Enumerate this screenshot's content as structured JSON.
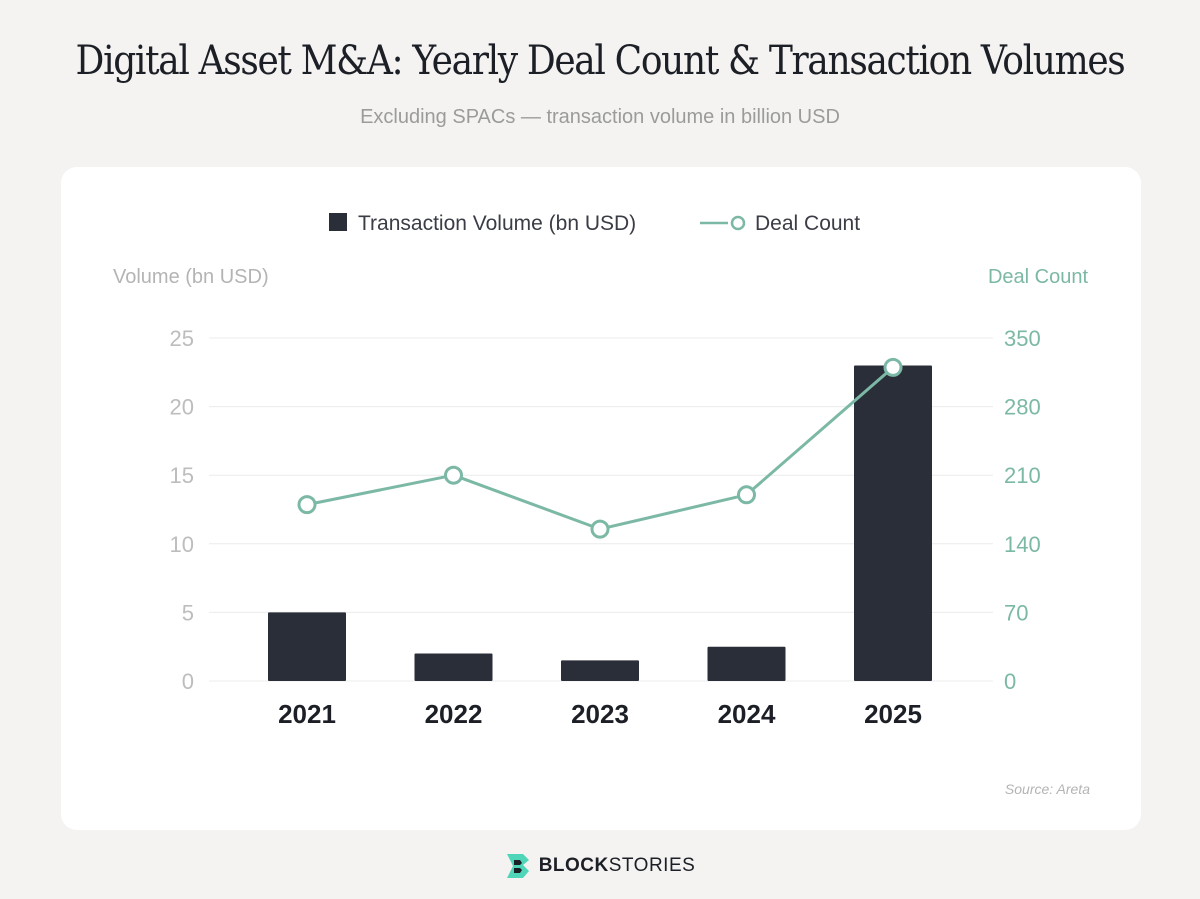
{
  "page": {
    "title": "Digital Asset M&A: Yearly Deal Count & Transaction Volumes",
    "subtitle": "Excluding SPACs — transaction volume in billion USD",
    "source": "Source: Areta",
    "brand": {
      "bold": "BLOCK",
      "light": "STORIES",
      "icon": "blockstories-logo-icon"
    }
  },
  "colors": {
    "bar": "#2a2e38",
    "line": "#7cb8a6",
    "left_axis_text": "#bdbdbd",
    "right_axis_text": "#7cb8a6",
    "grid": "#ececec",
    "logo_accent": "#4fd6b8"
  },
  "chart_data": {
    "type": "bar",
    "categories": [
      "2021",
      "2022",
      "2023",
      "2024",
      "2025"
    ],
    "series": [
      {
        "name": "Transaction Volume (bn USD)",
        "type": "bar",
        "axis": "left",
        "values": [
          5.0,
          2.0,
          1.5,
          2.5,
          23.0
        ]
      },
      {
        "name": "Deal Count",
        "type": "line",
        "axis": "right",
        "values": [
          180,
          210,
          155,
          190,
          320
        ]
      }
    ],
    "ylabel": "Volume (bn USD)",
    "y2label": "Deal Count",
    "ylim": [
      0,
      25
    ],
    "y2lim": [
      0,
      350
    ],
    "yticks": [
      0,
      5,
      10,
      15,
      20,
      25
    ],
    "y2ticks": [
      0,
      70,
      140,
      210,
      280,
      350
    ],
    "legend": "top-center",
    "grid": true
  }
}
